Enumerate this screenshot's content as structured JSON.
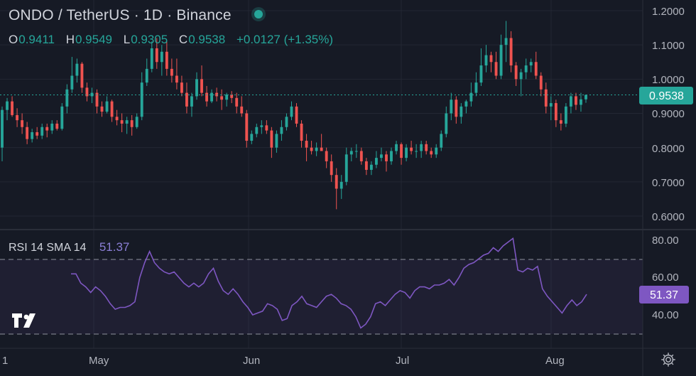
{
  "header": {
    "symbol": "ONDO",
    "quote": "TetherUS",
    "interval": "1D",
    "exchange": "Binance",
    "title": "ONDO / TetherUS · 1D · Binance",
    "live_status_color": "#26a69a"
  },
  "ohlc": {
    "open_label": "O",
    "open": "0.9411",
    "high_label": "H",
    "high": "0.9549",
    "low_label": "L",
    "low": "0.9305",
    "close_label": "C",
    "close": "0.9538",
    "change": "+0.0127 (+1.35%)"
  },
  "price_axis": {
    "ticks": [
      "1.2000",
      "1.1000",
      "1.0000",
      "0.9000",
      "0.8000",
      "0.7000",
      "0.6000"
    ],
    "last_price": "0.9538"
  },
  "rsi": {
    "label": "RSI 14 SMA 14",
    "value": "51.37",
    "ticks": [
      "80.00",
      "60.00",
      "40.00"
    ],
    "line_color": "#7e57c2"
  },
  "time_axis": {
    "labels": [
      "1",
      "May",
      "Jun",
      "Jul",
      "Aug"
    ]
  },
  "colors": {
    "up": "#26a69a",
    "down": "#ef5350",
    "background": "#161a25"
  },
  "icons": {
    "logo": "tradingview-logo",
    "settings": "gear-icon"
  },
  "chart_data": [
    {
      "type": "candlestick",
      "title": "ONDO / TetherUS · 1D · Binance",
      "ylim": [
        0.58,
        1.23
      ],
      "y_ticks": [
        1.2,
        1.1,
        1.0,
        0.9,
        0.8,
        0.7,
        0.6
      ],
      "x_labels": [
        "1",
        "May",
        "Jun",
        "Jul",
        "Aug"
      ],
      "ohlc": [
        [
          0.8,
          0.92,
          0.76,
          0.91
        ],
        [
          0.91,
          0.945,
          0.88,
          0.935
        ],
        [
          0.935,
          0.95,
          0.89,
          0.895
        ],
        [
          0.895,
          0.915,
          0.86,
          0.88
        ],
        [
          0.88,
          0.9,
          0.84,
          0.86
        ],
        [
          0.86,
          0.875,
          0.81,
          0.825
        ],
        [
          0.825,
          0.855,
          0.815,
          0.845
        ],
        [
          0.845,
          0.86,
          0.825,
          0.835
        ],
        [
          0.835,
          0.87,
          0.825,
          0.86
        ],
        [
          0.86,
          0.87,
          0.83,
          0.85
        ],
        [
          0.85,
          0.88,
          0.84,
          0.87
        ],
        [
          0.87,
          0.88,
          0.85,
          0.855
        ],
        [
          0.855,
          0.93,
          0.85,
          0.92
        ],
        [
          0.92,
          0.985,
          0.9,
          0.97
        ],
        [
          0.97,
          1.065,
          0.96,
          1.01
        ],
        [
          1.01,
          1.06,
          0.99,
          1.045
        ],
        [
          1.045,
          1.05,
          0.96,
          0.975
        ],
        [
          0.975,
          0.99,
          0.935,
          0.95
        ],
        [
          0.95,
          0.975,
          0.93,
          0.96
        ],
        [
          0.96,
          0.97,
          0.9,
          0.92
        ],
        [
          0.92,
          0.935,
          0.89,
          0.905
        ],
        [
          0.905,
          0.95,
          0.9,
          0.935
        ],
        [
          0.935,
          0.94,
          0.875,
          0.89
        ],
        [
          0.89,
          0.91,
          0.865,
          0.88
        ],
        [
          0.88,
          0.9,
          0.845,
          0.87
        ],
        [
          0.87,
          0.89,
          0.84,
          0.88
        ],
        [
          0.88,
          0.895,
          0.835,
          0.86
        ],
        [
          0.86,
          0.9,
          0.855,
          0.89
        ],
        [
          0.89,
          1.02,
          0.88,
          0.99
        ],
        [
          0.99,
          1.06,
          0.98,
          1.03
        ],
        [
          1.03,
          1.11,
          1.02,
          1.09
        ],
        [
          1.09,
          1.12,
          1.03,
          1.05
        ],
        [
          1.05,
          1.1,
          1.01,
          1.08
        ],
        [
          1.08,
          1.11,
          1.01,
          1.03
        ],
        [
          1.03,
          1.06,
          0.99,
          1.01
        ],
        [
          1.01,
          1.06,
          0.97,
          0.99
        ],
        [
          0.99,
          1.01,
          0.95,
          0.96
        ],
        [
          0.96,
          0.99,
          0.9,
          0.92
        ],
        [
          0.92,
          0.96,
          0.89,
          0.95
        ],
        [
          0.95,
          1.02,
          0.94,
          1.0
        ],
        [
          1.0,
          1.04,
          0.95,
          0.96
        ],
        [
          0.96,
          0.98,
          0.92,
          0.935
        ],
        [
          0.935,
          0.97,
          0.93,
          0.96
        ],
        [
          0.96,
          0.975,
          0.935,
          0.95
        ],
        [
          0.95,
          0.97,
          0.91,
          0.94
        ],
        [
          0.94,
          0.96,
          0.92,
          0.955
        ],
        [
          0.955,
          0.965,
          0.93,
          0.945
        ],
        [
          0.945,
          0.96,
          0.9,
          0.92
        ],
        [
          0.92,
          0.95,
          0.89,
          0.9
        ],
        [
          0.9,
          0.91,
          0.8,
          0.82
        ],
        [
          0.82,
          0.85,
          0.81,
          0.84
        ],
        [
          0.84,
          0.87,
          0.83,
          0.86
        ],
        [
          0.86,
          0.88,
          0.84,
          0.865
        ],
        [
          0.865,
          0.88,
          0.84,
          0.85
        ],
        [
          0.85,
          0.86,
          0.77,
          0.8
        ],
        [
          0.8,
          0.85,
          0.785,
          0.84
        ],
        [
          0.84,
          0.88,
          0.82,
          0.86
        ],
        [
          0.86,
          0.9,
          0.85,
          0.89
        ],
        [
          0.89,
          0.935,
          0.88,
          0.92
        ],
        [
          0.92,
          0.93,
          0.86,
          0.87
        ],
        [
          0.87,
          0.88,
          0.8,
          0.82
        ],
        [
          0.82,
          0.84,
          0.76,
          0.8
        ],
        [
          0.8,
          0.82,
          0.78,
          0.79
        ],
        [
          0.79,
          0.815,
          0.775,
          0.8
        ],
        [
          0.8,
          0.84,
          0.79,
          0.79
        ],
        [
          0.79,
          0.8,
          0.74,
          0.76
        ],
        [
          0.76,
          0.78,
          0.7,
          0.72
        ],
        [
          0.72,
          0.74,
          0.62,
          0.68
        ],
        [
          0.68,
          0.72,
          0.65,
          0.7
        ],
        [
          0.7,
          0.8,
          0.69,
          0.78
        ],
        [
          0.78,
          0.8,
          0.76,
          0.79
        ],
        [
          0.79,
          0.81,
          0.77,
          0.79
        ],
        [
          0.79,
          0.8,
          0.75,
          0.76
        ],
        [
          0.76,
          0.77,
          0.72,
          0.735
        ],
        [
          0.735,
          0.76,
          0.72,
          0.75
        ],
        [
          0.75,
          0.79,
          0.74,
          0.77
        ],
        [
          0.77,
          0.8,
          0.76,
          0.78
        ],
        [
          0.78,
          0.79,
          0.73,
          0.76
        ],
        [
          0.76,
          0.8,
          0.75,
          0.79
        ],
        [
          0.79,
          0.82,
          0.78,
          0.81
        ],
        [
          0.81,
          0.815,
          0.75,
          0.77
        ],
        [
          0.77,
          0.81,
          0.76,
          0.8
        ],
        [
          0.8,
          0.82,
          0.78,
          0.79
        ],
        [
          0.79,
          0.81,
          0.77,
          0.79
        ],
        [
          0.79,
          0.82,
          0.77,
          0.81
        ],
        [
          0.81,
          0.82,
          0.78,
          0.79
        ],
        [
          0.79,
          0.8,
          0.77,
          0.78
        ],
        [
          0.78,
          0.81,
          0.77,
          0.8
        ],
        [
          0.8,
          0.85,
          0.79,
          0.84
        ],
        [
          0.84,
          0.92,
          0.83,
          0.9
        ],
        [
          0.9,
          0.96,
          0.88,
          0.94
        ],
        [
          0.94,
          0.95,
          0.87,
          0.89
        ],
        [
          0.89,
          0.93,
          0.87,
          0.92
        ],
        [
          0.92,
          0.94,
          0.9,
          0.935
        ],
        [
          0.935,
          0.99,
          0.92,
          0.96
        ],
        [
          0.96,
          1.02,
          0.95,
          0.99
        ],
        [
          0.99,
          1.09,
          0.98,
          1.04
        ],
        [
          1.04,
          1.1,
          1.02,
          1.07
        ],
        [
          1.07,
          1.08,
          1.02,
          1.05
        ],
        [
          1.05,
          1.08,
          1.0,
          1.01
        ],
        [
          1.01,
          1.13,
          1.0,
          1.1
        ],
        [
          1.1,
          1.17,
          1.05,
          1.12
        ],
        [
          1.12,
          1.14,
          1.02,
          1.04
        ],
        [
          1.04,
          1.05,
          0.98,
          1.0
        ],
        [
          1.0,
          1.03,
          0.95,
          1.02
        ],
        [
          1.02,
          1.06,
          1.0,
          1.04
        ],
        [
          1.04,
          1.06,
          1.02,
          1.05
        ],
        [
          1.05,
          1.08,
          1.0,
          1.01
        ],
        [
          1.01,
          1.02,
          0.95,
          0.97
        ],
        [
          0.97,
          0.99,
          0.9,
          0.92
        ],
        [
          0.92,
          0.95,
          0.88,
          0.93
        ],
        [
          0.93,
          0.94,
          0.86,
          0.88
        ],
        [
          0.88,
          0.9,
          0.85,
          0.87
        ],
        [
          0.87,
          0.93,
          0.86,
          0.92
        ],
        [
          0.92,
          0.96,
          0.9,
          0.95
        ],
        [
          0.95,
          0.96,
          0.91,
          0.925
        ],
        [
          0.925,
          0.96,
          0.905,
          0.941
        ],
        [
          0.941,
          0.955,
          0.931,
          0.954
        ]
      ]
    },
    {
      "type": "line",
      "title": "RSI 14 SMA 14",
      "name": "RSI",
      "ylim": [
        30,
        85
      ],
      "y_ticks": [
        80,
        60,
        40
      ],
      "bands": [
        70,
        30
      ],
      "values": [
        62,
        62,
        57,
        55,
        52,
        55,
        53,
        50,
        46,
        43,
        44,
        44,
        45,
        47,
        60,
        68,
        74,
        68,
        65,
        63,
        62,
        63,
        60,
        57,
        55,
        57,
        55,
        57,
        62,
        65,
        58,
        53,
        51,
        54,
        51,
        47,
        44,
        40,
        41,
        42,
        46,
        45,
        43,
        37,
        38,
        45,
        47,
        50,
        46,
        45,
        44,
        47,
        50,
        51,
        49,
        46,
        45,
        43,
        39,
        33,
        35,
        39,
        46,
        47,
        45,
        48,
        51,
        53,
        52,
        49,
        53,
        55,
        55,
        54,
        56,
        56,
        57,
        59,
        56,
        60,
        65,
        67,
        68,
        70,
        72,
        73,
        76,
        74,
        77,
        79,
        81,
        64,
        63,
        65,
        64,
        66,
        54,
        50,
        47,
        44,
        41,
        45,
        48,
        45,
        47,
        51
      ]
    }
  ]
}
